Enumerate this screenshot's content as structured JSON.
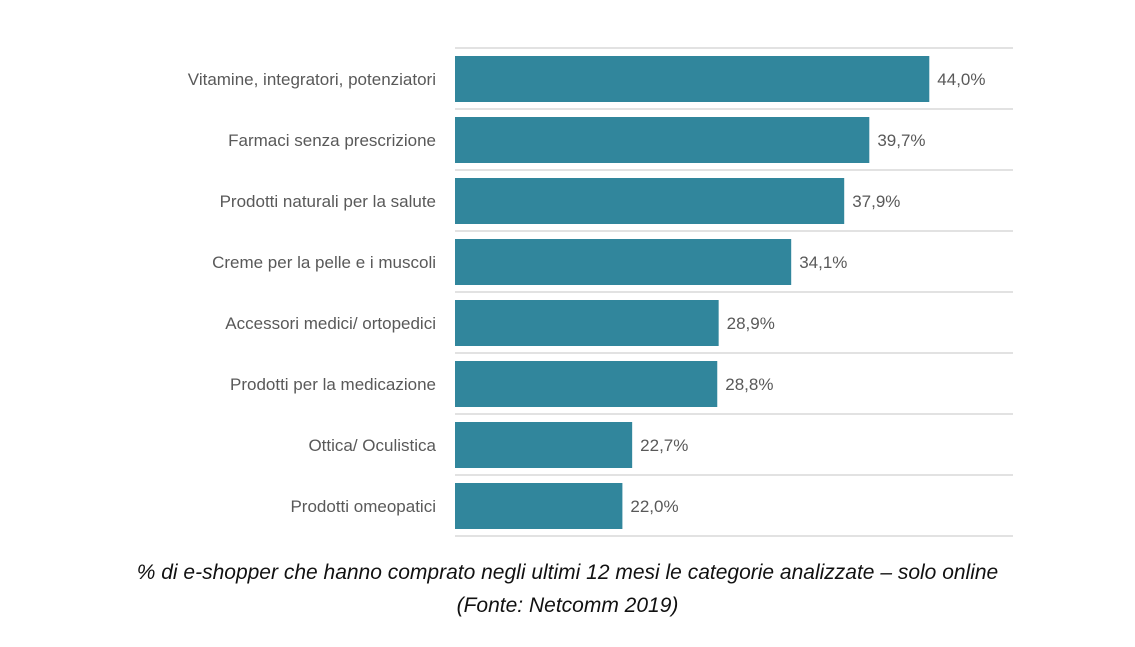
{
  "chart_data": {
    "type": "bar",
    "orientation": "horizontal",
    "categories": [
      "Vitamine, integratori, potenziatori",
      "Farmaci senza prescrizione",
      "Prodotti naturali per la salute",
      "Creme per la pelle e i muscoli",
      "Accessori medici/ ortopedici",
      "Prodotti per la medicazione",
      "Ottica/ Oculistica",
      "Prodotti omeopatici"
    ],
    "values": [
      44.0,
      39.7,
      37.9,
      34.1,
      28.9,
      28.8,
      22.7,
      22.0
    ],
    "data_labels": [
      "44,0%",
      "39,7%",
      "37,9%",
      "34,1%",
      "28,9%",
      "28,8%",
      "22,7%",
      "22,0%"
    ],
    "xlim": [
      10,
      50
    ],
    "grid": true,
    "bar_color": "#31869C",
    "caption_line1": "% di e-shopper che hanno comprato negli ultimi 12 mesi le categorie analizzate – solo online",
    "caption_line2": "(Fonte: Netcomm 2019)"
  }
}
